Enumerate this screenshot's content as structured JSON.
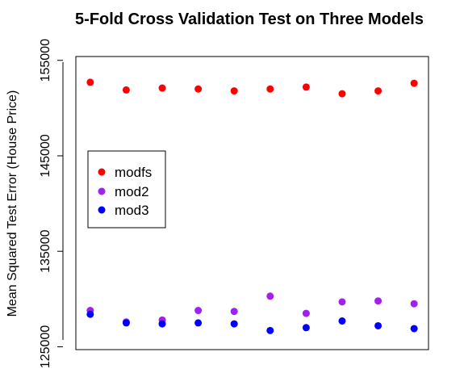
{
  "chart_data": {
    "type": "scatter",
    "title": "5-Fold Cross Validation Test on Three Models",
    "xlabel": "",
    "ylabel": "Mean Squared Test Error (House Price)",
    "x": [
      1,
      2,
      3,
      4,
      5,
      6,
      7,
      8,
      9,
      10
    ],
    "xlim": [
      0.6,
      10.4
    ],
    "ylim": [
      124700,
      155400
    ],
    "yticks": [
      125000,
      135000,
      145000,
      155000
    ],
    "ytick_labels": [
      "125000",
      "135000",
      "145000",
      "155000"
    ],
    "grid": false,
    "legend_placement": "left-middle",
    "series": [
      {
        "name": "modfs",
        "color": "#ff0000",
        "values": [
          152700,
          151900,
          152100,
          152000,
          151800,
          152000,
          152200,
          151500,
          151800,
          152600
        ]
      },
      {
        "name": "mod2",
        "color": "#a020f0",
        "values": [
          128800,
          127600,
          127800,
          128800,
          128700,
          130300,
          128500,
          129700,
          129800,
          129500
        ]
      },
      {
        "name": "mod3",
        "color": "#0000ff",
        "values": [
          128400,
          127500,
          127400,
          127500,
          127400,
          126700,
          127000,
          127700,
          127200,
          126900
        ]
      }
    ]
  }
}
